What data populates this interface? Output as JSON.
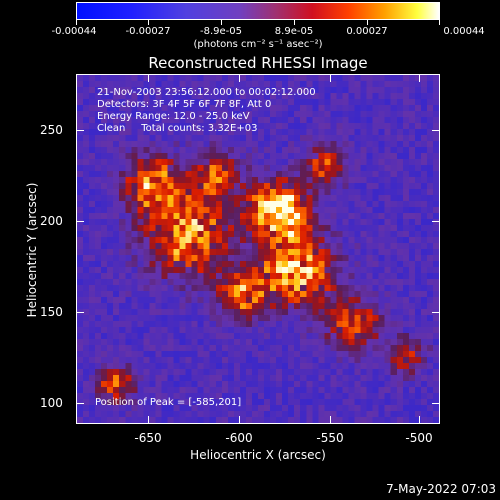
{
  "colorbar": {
    "tick_labels": [
      "-0.00044",
      "-0.00027",
      "-8.9e-05",
      "8.9e-05",
      "0.00027",
      "0.00044"
    ],
    "units": "(photons cm⁻² s⁻¹ asec⁻²)"
  },
  "title": "Reconstructed RHESSI Image",
  "info": {
    "line1": "21-Nov-2003 23:56:12.000 to 00:02:12.000",
    "line2": "Detectors: 3F 4F 5F 6F 7F 8F, Att 0",
    "line3": "Energy Range: 12.0 - 25.0 keV",
    "line4": "Clean     Total counts: 3.32E+03"
  },
  "peak_text": "Position of Peak = [-585,201]",
  "axes": {
    "x_title": "Heliocentric X (arcsec)",
    "y_title": "Heliocentric Y (arcsec)",
    "x_ticks": [
      "-650",
      "-600",
      "-550",
      "-500"
    ],
    "y_ticks": [
      "250",
      "200",
      "150",
      "100"
    ]
  },
  "timestamp": "7-May-2022 07:03",
  "chart_data": {
    "type": "heatmap",
    "title": "Reconstructed RHESSI Image",
    "xlabel": "Heliocentric X (arcsec)",
    "ylabel": "Heliocentric Y (arcsec)",
    "xlim": [
      -688,
      -494
    ],
    "ylim": [
      91,
      283
    ],
    "colorbar_range": [
      -0.00044,
      0.00044
    ],
    "peak": [
      -585,
      201
    ]
  }
}
